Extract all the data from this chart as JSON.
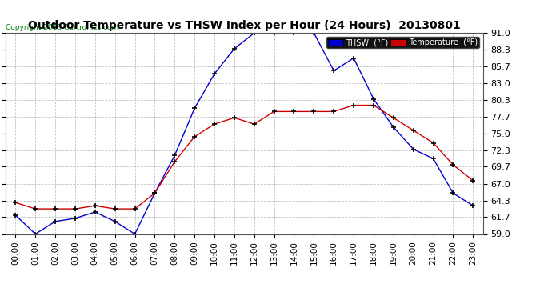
{
  "title": "Outdoor Temperature vs THSW Index per Hour (24 Hours)  20130801",
  "copyright": "Copyright 2013 Cartronics.com",
  "background_color": "#ffffff",
  "plot_bg_color": "#ffffff",
  "grid_color": "#bbbbbb",
  "hours": [
    "00:00",
    "01:00",
    "02:00",
    "03:00",
    "04:00",
    "05:00",
    "06:00",
    "07:00",
    "08:00",
    "09:00",
    "10:00",
    "11:00",
    "12:00",
    "13:00",
    "14:00",
    "15:00",
    "16:00",
    "17:00",
    "18:00",
    "19:00",
    "20:00",
    "21:00",
    "22:00",
    "23:00"
  ],
  "thsw": [
    62.0,
    59.0,
    61.0,
    61.5,
    62.5,
    61.0,
    59.0,
    65.5,
    71.5,
    79.0,
    84.5,
    88.5,
    91.0,
    91.0,
    91.0,
    91.0,
    85.0,
    87.0,
    80.5,
    76.0,
    72.5,
    71.0,
    65.5,
    63.5
  ],
  "temperature": [
    64.0,
    63.0,
    63.0,
    63.0,
    63.5,
    63.0,
    63.0,
    65.5,
    70.5,
    74.5,
    76.5,
    77.5,
    76.5,
    78.5,
    78.5,
    78.5,
    78.5,
    79.5,
    79.5,
    77.5,
    75.5,
    73.5,
    70.0,
    67.5
  ],
  "thsw_color": "#0000cc",
  "temp_color": "#cc0000",
  "thsw_label": "THSW  (°F)",
  "temp_label": "Temperature  (°F)",
  "ylim_min": 59.0,
  "ylim_max": 91.0,
  "yticks": [
    59.0,
    61.7,
    64.3,
    67.0,
    69.7,
    72.3,
    75.0,
    77.7,
    80.3,
    83.0,
    85.7,
    88.3,
    91.0
  ]
}
